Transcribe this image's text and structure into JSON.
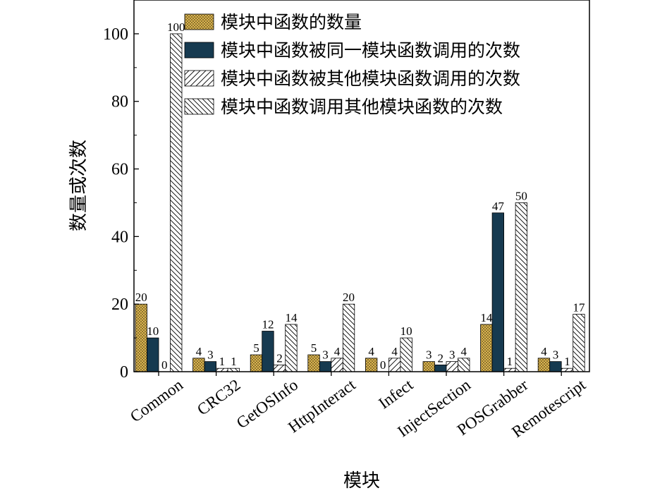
{
  "chart_data": {
    "type": "bar",
    "title": "",
    "xlabel": "模块",
    "ylabel": "数量或次数",
    "ylim": [
      0,
      110
    ],
    "yticks": [
      0,
      20,
      40,
      60,
      80,
      100
    ],
    "grid": false,
    "legend_position": "top-right",
    "categories": [
      "Common",
      "CRC32",
      "GetOSInfo",
      "HttpInteract",
      "Infect",
      "InjectSection",
      "POSGrabber",
      "Remotescript"
    ],
    "series": [
      {
        "name": "模块中函数的数量",
        "values": [
          20,
          4,
          5,
          5,
          4,
          3,
          14,
          4
        ],
        "pattern": "crosshatch",
        "color": "#e6bd55"
      },
      {
        "name": "模块中函数被同一模块函数调用的次数",
        "values": [
          10,
          3,
          12,
          3,
          0,
          2,
          47,
          3
        ],
        "pattern": "solid",
        "color": "#163a50"
      },
      {
        "name": "模块中函数被其他模块函数调用的次数",
        "values": [
          0,
          1,
          2,
          4,
          4,
          3,
          1,
          1
        ],
        "pattern": "forward-diagonal",
        "color": "#ffffff"
      },
      {
        "name": "模块中函数调用其他模块函数的次数",
        "values": [
          100,
          1,
          14,
          20,
          10,
          4,
          50,
          17
        ],
        "pattern": "back-diagonal",
        "color": "#ffffff"
      }
    ]
  }
}
